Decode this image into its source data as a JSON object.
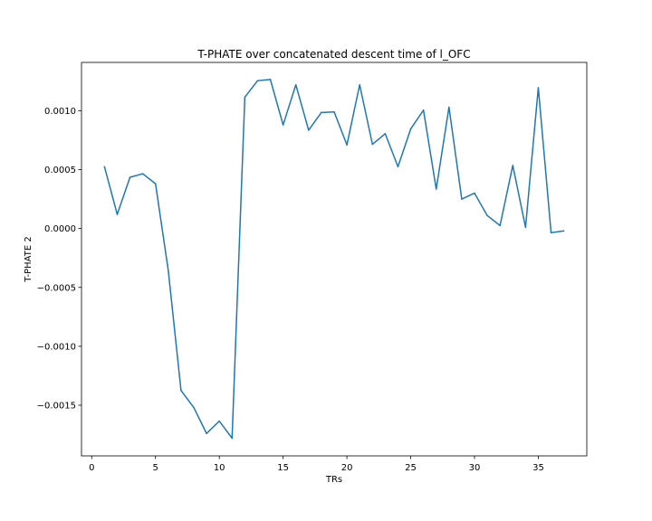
{
  "chart_data": {
    "type": "line",
    "title": "T-PHATE over concatenated descent time of l_OFC",
    "xlabel": "TRs",
    "ylabel": "T-PHATE 2",
    "xlim": [
      -0.8,
      38.8
    ],
    "ylim": [
      -0.00193,
      0.00141
    ],
    "grid": false,
    "legend": "none",
    "line_color": "#1f77b4",
    "xticks": [
      0,
      5,
      10,
      15,
      20,
      25,
      30,
      35
    ],
    "xtick_labels": [
      "0",
      "5",
      "10",
      "15",
      "20",
      "25",
      "30",
      "35"
    ],
    "yticks": [
      -0.0015,
      -0.001,
      -0.0005,
      0.0,
      0.0005,
      0.001
    ],
    "ytick_labels": [
      "−0.0015",
      "−0.0010",
      "−0.0005",
      "0.0000",
      "0.0005",
      "0.0010"
    ],
    "series": [
      {
        "x": [
          1,
          2,
          3,
          4,
          5,
          6,
          7,
          8,
          9,
          10,
          11,
          12,
          13,
          14,
          15,
          16,
          17,
          18,
          19,
          20,
          21,
          22,
          23,
          24,
          25,
          26,
          27,
          28,
          29,
          30,
          31,
          32,
          33,
          34,
          35,
          36,
          37
        ],
        "y": [
          0.000525,
          0.00012,
          0.000435,
          0.000465,
          0.00038,
          -0.000355,
          -0.001375,
          -0.00152,
          -0.00174,
          -0.001635,
          -0.00178,
          0.001115,
          0.001255,
          0.001265,
          0.00088,
          0.00122,
          0.000835,
          0.000985,
          0.00099,
          0.00071,
          0.00122,
          0.000715,
          0.000805,
          0.000525,
          0.000845,
          0.001005,
          0.000335,
          0.00103,
          0.00025,
          0.0003,
          0.00011,
          2.5e-05,
          0.000535,
          1e-05,
          0.001195,
          -3.5e-05,
          -2e-05
        ]
      }
    ]
  }
}
